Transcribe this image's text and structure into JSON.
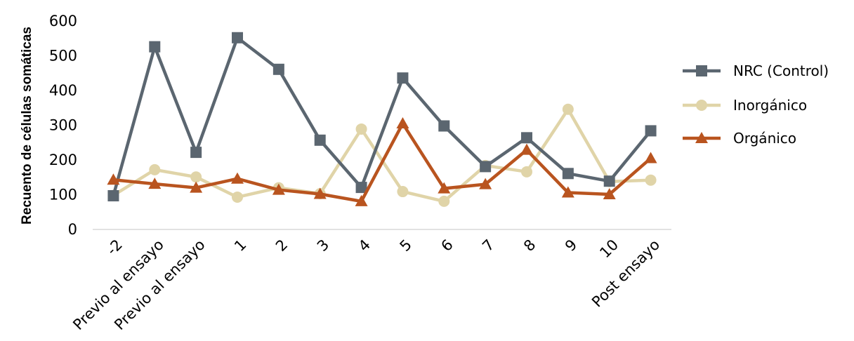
{
  "chart_data": {
    "type": "line",
    "title": "",
    "xlabel": "",
    "ylabel": "Recuento de células somáticas",
    "ylim": [
      0,
      600
    ],
    "yticks": [
      0,
      100,
      200,
      300,
      400,
      500,
      600
    ],
    "grid": false,
    "legend_position": "right",
    "categories": [
      "-2",
      "Previo al ensayo",
      "Previo al ensayo",
      "1",
      "2",
      "3",
      "4",
      "5",
      "6",
      "7",
      "8",
      "9",
      "10",
      "Post ensayo"
    ],
    "series": [
      {
        "name": "NRC (Control)",
        "color": "#5b6670",
        "marker": "square",
        "values": [
          97,
          526,
          222,
          552,
          461,
          257,
          121,
          436,
          298,
          181,
          264,
          161,
          139,
          284
        ]
      },
      {
        "name": "Inorgánico",
        "color": "#e0d4a8",
        "marker": "circle",
        "values": [
          98,
          172,
          151,
          93,
          120,
          103,
          289,
          109,
          81,
          184,
          166,
          346,
          138,
          142
        ]
      },
      {
        "name": "Orgánico",
        "color": "#b9541f",
        "marker": "triangle",
        "values": [
          143,
          131,
          120,
          146,
          114,
          102,
          81,
          305,
          118,
          130,
          229,
          106,
          101,
          205
        ]
      }
    ]
  }
}
